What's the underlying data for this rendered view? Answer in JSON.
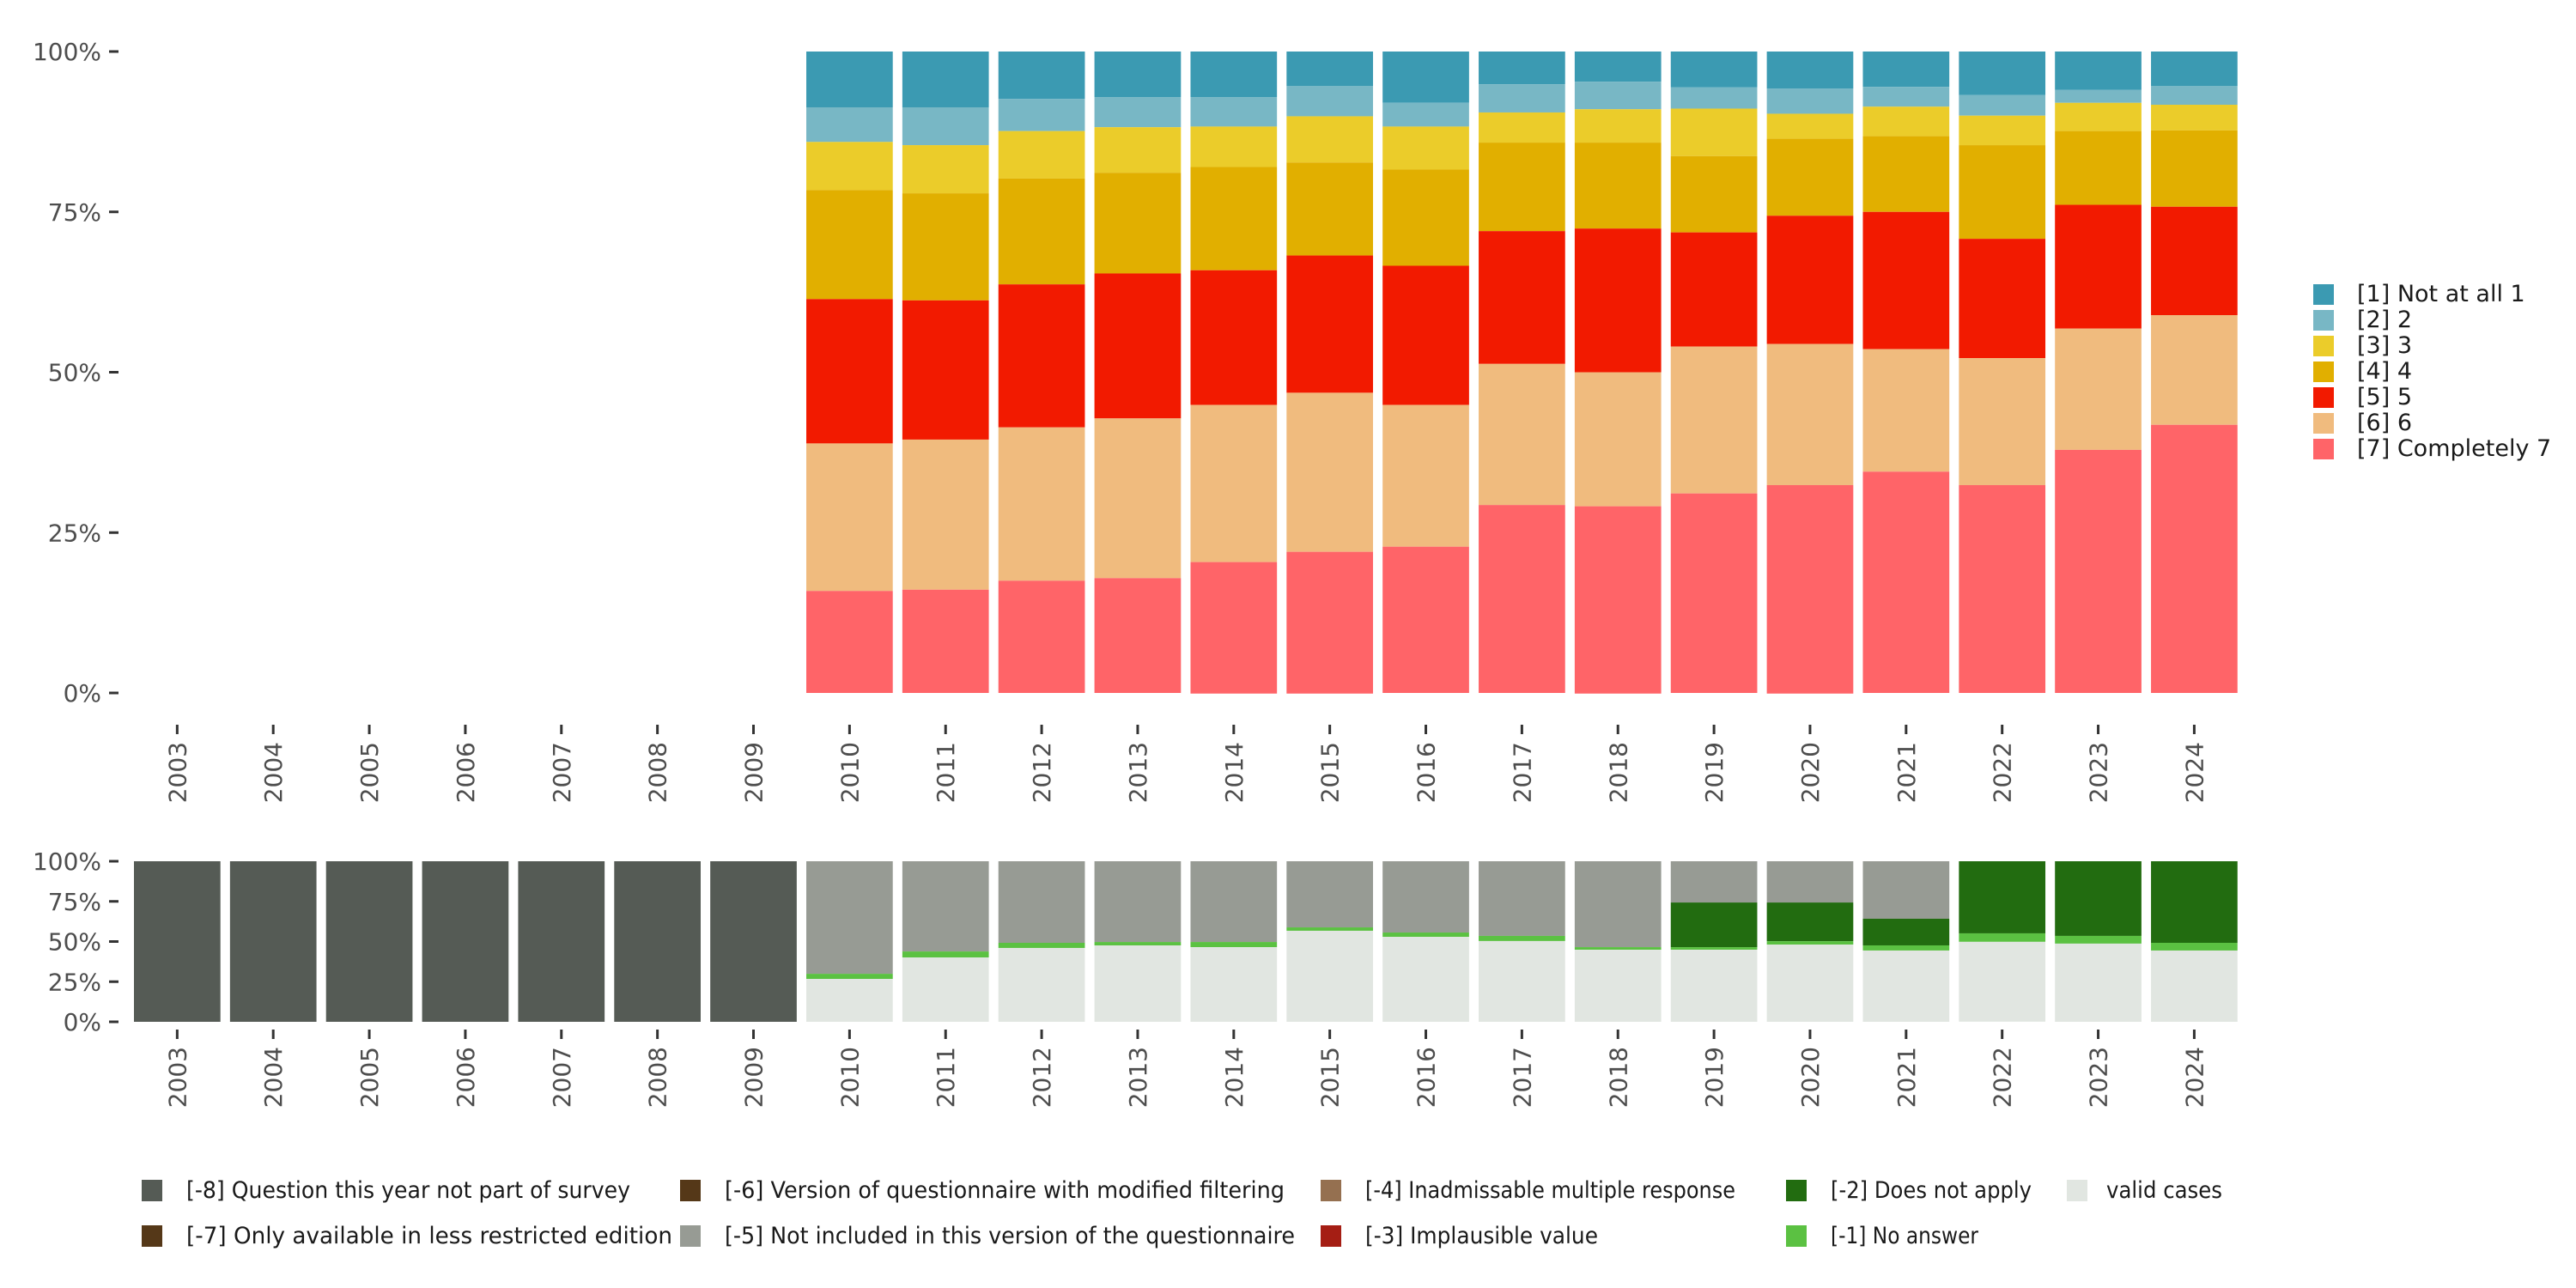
{
  "chart_data": [
    {
      "type": "bar",
      "stacked": "percent",
      "panel": "top",
      "title": "",
      "xlabel": "",
      "ylabel": "",
      "ylim": [
        0,
        100
      ],
      "yticks": [
        "0%",
        "25%",
        "50%",
        "75%",
        "100%"
      ],
      "grid": false,
      "legend_position": "right",
      "categories": [
        "2003",
        "2004",
        "2005",
        "2006",
        "2007",
        "2008",
        "2009",
        "2010",
        "2011",
        "2012",
        "2013",
        "2014",
        "2015",
        "2016",
        "2017",
        "2018",
        "2019",
        "2020",
        "2021",
        "2022",
        "2023",
        "2024"
      ],
      "series": [
        {
          "name": "[1] Not at all 1",
          "color": "#3B9AB2",
          "values": [
            null,
            null,
            null,
            null,
            null,
            null,
            null,
            8.7,
            8.7,
            7.4,
            7.1,
            7.1,
            5.4,
            8.0,
            5.1,
            4.7,
            5.6,
            5.8,
            5.5,
            6.8,
            6.0,
            5.4
          ]
        },
        {
          "name": "[2] 2",
          "color": "#78B7C5",
          "values": [
            null,
            null,
            null,
            null,
            null,
            null,
            null,
            5.4,
            5.9,
            5.0,
            4.7,
            4.6,
            4.7,
            3.7,
            4.4,
            4.3,
            3.3,
            3.9,
            3.1,
            3.2,
            2.0,
            2.9
          ]
        },
        {
          "name": "[3] 3",
          "color": "#EBCC2A",
          "values": [
            null,
            null,
            null,
            null,
            null,
            null,
            null,
            7.5,
            7.5,
            7.4,
            7.1,
            6.3,
            7.2,
            6.7,
            4.7,
            5.2,
            7.4,
            3.9,
            4.6,
            4.6,
            4.4,
            4.0
          ]
        },
        {
          "name": "[4] 4",
          "color": "#E1AF00",
          "values": [
            null,
            null,
            null,
            null,
            null,
            null,
            null,
            17.0,
            16.7,
            16.5,
            15.7,
            16.1,
            14.5,
            15.0,
            13.8,
            13.4,
            11.9,
            12.0,
            11.8,
            14.6,
            11.5,
            11.9
          ]
        },
        {
          "name": "[5] 5",
          "color": "#F21A00",
          "values": [
            null,
            null,
            null,
            null,
            null,
            null,
            null,
            22.5,
            21.7,
            22.3,
            22.6,
            21.0,
            21.4,
            21.7,
            20.7,
            22.4,
            17.8,
            20.0,
            21.4,
            18.6,
            19.3,
            16.9
          ]
        },
        {
          "name": "[6] 6",
          "color": "#F0BB7E",
          "values": [
            null,
            null,
            null,
            null,
            null,
            null,
            null,
            23.0,
            23.4,
            23.9,
            24.9,
            24.5,
            24.8,
            22.1,
            22.0,
            20.9,
            22.9,
            22.0,
            19.1,
            19.8,
            18.9,
            17.1
          ]
        },
        {
          "name": "[7] Completely 7",
          "color": "#FF6468",
          "values": [
            null,
            null,
            null,
            null,
            null,
            null,
            null,
            15.9,
            16.1,
            17.5,
            17.9,
            20.5,
            22.1,
            22.8,
            29.3,
            29.2,
            31.1,
            32.5,
            34.5,
            32.4,
            37.9,
            41.8
          ]
        }
      ]
    },
    {
      "type": "bar",
      "stacked": "percent",
      "panel": "bottom",
      "title": "",
      "xlabel": "",
      "ylabel": "",
      "ylim": [
        0,
        100
      ],
      "yticks": [
        "0%",
        "25%",
        "50%",
        "75%",
        "100%"
      ],
      "grid": false,
      "legend_position": "bottom",
      "categories": [
        "2003",
        "2004",
        "2005",
        "2006",
        "2007",
        "2008",
        "2009",
        "2010",
        "2011",
        "2012",
        "2013",
        "2014",
        "2015",
        "2016",
        "2017",
        "2018",
        "2019",
        "2020",
        "2021",
        "2022",
        "2023",
        "2024"
      ],
      "series": [
        {
          "name": "[-8] Question this year not part of survey",
          "color": "#555B55",
          "values": [
            100,
            100,
            100,
            100,
            100,
            100,
            100,
            0,
            0,
            0,
            0,
            0,
            0,
            0,
            0,
            0,
            0,
            0,
            0,
            0,
            0,
            0
          ]
        },
        {
          "name": "[-7] Only available in less restricted edition",
          "color": "#553818",
          "values": [
            0,
            0,
            0,
            0,
            0,
            0,
            0,
            0,
            0,
            0,
            0,
            0,
            0,
            0,
            0,
            0,
            0,
            0,
            0,
            0,
            0,
            0
          ]
        },
        {
          "name": "[-6] Version of questionnaire with modified filtering",
          "color": "#553818",
          "values": [
            0,
            0,
            0,
            0,
            0,
            0,
            0,
            0,
            0,
            0,
            0,
            0,
            0,
            0,
            0,
            0,
            0,
            0,
            0,
            0,
            0,
            0
          ]
        },
        {
          "name": "[-5] Not included in this version of the questionnaire",
          "color": "#979B94",
          "values": [
            0,
            0,
            0,
            0,
            0,
            0,
            0,
            70.1,
            56.2,
            50.8,
            50.3,
            50.3,
            41.2,
            44.4,
            46.5,
            53.5,
            25.7,
            25.7,
            35.8,
            0,
            0,
            0
          ]
        },
        {
          "name": "[-4] Inadmissable multiple response",
          "color": "#957050",
          "values": [
            0,
            0,
            0,
            0,
            0,
            0,
            0,
            0,
            0,
            0,
            0,
            0,
            0,
            0,
            0,
            0,
            0,
            0,
            0,
            0,
            0,
            0
          ]
        },
        {
          "name": "[-3] Implausible value",
          "color": "#A51E14",
          "values": [
            0,
            0,
            0,
            0,
            0,
            0,
            0,
            0,
            0,
            0,
            0,
            0,
            0,
            0,
            0,
            0,
            0,
            0,
            0,
            0,
            0,
            0
          ]
        },
        {
          "name": "[-2] Does not apply",
          "color": "#226C10",
          "values": [
            0,
            0,
            0,
            0,
            0,
            0,
            0,
            0,
            0,
            0,
            0,
            0,
            0,
            0,
            0,
            0,
            27.8,
            24.1,
            16.6,
            44.9,
            46.5,
            50.8
          ]
        },
        {
          "name": "[-1] No answer",
          "color": "#5BC142",
          "values": [
            0,
            0,
            0,
            0,
            0,
            0,
            0,
            3.2,
            3.7,
            3.2,
            2.1,
            3.2,
            2.1,
            2.7,
            3.2,
            1.6,
            1.6,
            2.1,
            3.2,
            5.3,
            4.8,
            4.8
          ]
        },
        {
          "name": "valid cases",
          "color": "#E1E6E1",
          "values": [
            0,
            0,
            0,
            0,
            0,
            0,
            0,
            26.7,
            40.1,
            46.0,
            47.6,
            46.5,
            56.7,
            52.9,
            50.3,
            44.9,
            44.9,
            48.1,
            44.4,
            49.7,
            48.7,
            44.4
          ]
        }
      ],
      "legend_layout": [
        [
          "[-8] Question this year not part of survey",
          "[-7] Only available in less restricted edition"
        ],
        [
          "[-6] Version of questionnaire with modified filtering",
          "[-5] Not included in this version of the questionnaire"
        ],
        [
          "[-4] Inadmissable multiple response",
          "[-3] Implausible value"
        ],
        [
          "[-2] Does not apply",
          "[-1] No answer"
        ],
        [
          "valid cases"
        ]
      ]
    }
  ]
}
